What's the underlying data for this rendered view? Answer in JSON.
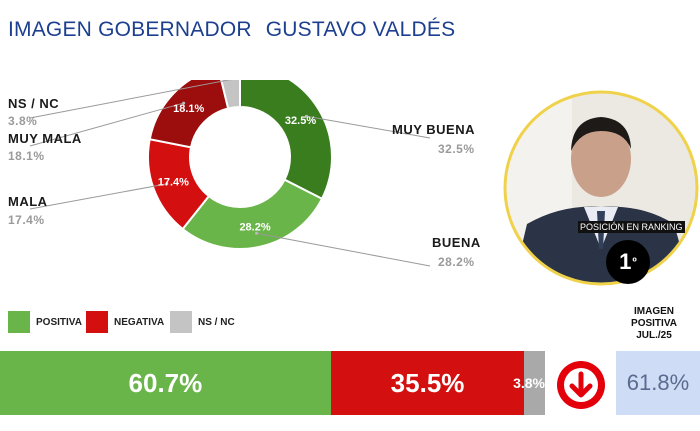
{
  "title": {
    "part1": "IMAGEN GOBERNADOR",
    "part2": "GUSTAVO VALDÉS"
  },
  "chart_data": {
    "type": "pie",
    "donut": true,
    "slices": [
      {
        "label": "MUY BUENA",
        "value": 32.5,
        "display": "32.5%",
        "color": "#3a7d1f"
      },
      {
        "label": "BUENA",
        "value": 28.2,
        "display": "28.2%",
        "color": "#6ab54a"
      },
      {
        "label": "MALA",
        "value": 17.4,
        "display": "17.4%",
        "color": "#d40f10"
      },
      {
        "label": "MUY MALA",
        "value": 18.1,
        "display": "18.1%",
        "color": "#9c0d0d"
      },
      {
        "label": "NS / NC",
        "value": 3.8,
        "display": "3.8%",
        "color": "#c4c4c4"
      }
    ]
  },
  "slice_text": {
    "muy_buena": {
      "name": "MUY BUENA",
      "value": "32.5%"
    },
    "buena": {
      "name": "BUENA",
      "value": "28.2%"
    },
    "mala": {
      "name": "MALA",
      "value": "17.4%"
    },
    "muy_mala": {
      "name": "MUY MALA",
      "value": "18.1%"
    },
    "nsnc": {
      "name": "NS / NC",
      "value": "3.8%"
    }
  },
  "legend": [
    {
      "label": "POSITIVA",
      "color": "#6ab54a"
    },
    {
      "label": "NEGATIVA",
      "color": "#d40f10"
    },
    {
      "label": "NS / NC",
      "color": "#c4c4c4"
    }
  ],
  "summary_bar": {
    "positiva": {
      "value": 60.7,
      "display": "60.7%",
      "color": "#6ab54a"
    },
    "negativa": {
      "value": 35.5,
      "display": "35.5%",
      "color": "#d40f10"
    },
    "nsnc": {
      "value": 3.8,
      "display": "3.8%",
      "color": "#a9a9a9"
    }
  },
  "trend": {
    "icon": "down-arrow-icon",
    "color": "#e3000b"
  },
  "imagen_positiva": {
    "line1": "IMAGEN",
    "line2": "POSITIVA",
    "line3": "JUL./25",
    "value": "61.8%"
  },
  "ranking": {
    "label": "POSICIÓN EN RANKING",
    "position": "1",
    "suffix": "º"
  }
}
